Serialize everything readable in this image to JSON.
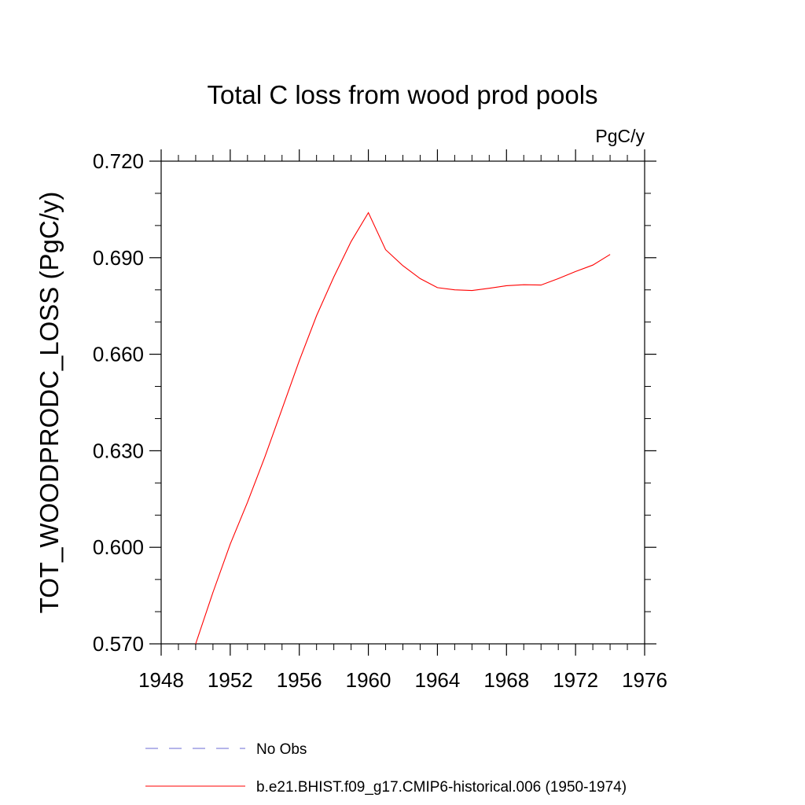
{
  "chart_data": {
    "type": "line",
    "title": "Total C loss from wood prod pools",
    "units_label": "PgC/y",
    "ylabel": "TOT_WOODPRODC_LOSS  (PgC/y)",
    "xlabel": "",
    "xlim": [
      1948,
      1976
    ],
    "ylim": [
      0.57,
      0.72
    ],
    "x_major_ticks": [
      1948,
      1952,
      1956,
      1960,
      1964,
      1968,
      1972,
      1976
    ],
    "x_major_tick_labels": [
      "1948",
      "1952",
      "1956",
      "1960",
      "1964",
      "1968",
      "1972",
      "1976"
    ],
    "y_major_ticks": [
      0.57,
      0.6,
      0.63,
      0.66,
      0.69,
      0.72
    ],
    "y_major_tick_labels": [
      "0.570",
      "0.600",
      "0.630",
      "0.660",
      "0.690",
      "0.720"
    ],
    "x_minor_step": 1,
    "y_minor_step": 0.01,
    "grid": false,
    "legend_position": "bottom",
    "series": [
      {
        "name": "b.e21.BHIST.f09_g17.CMIP6-historical.006 (1950-1974)",
        "color": "#ff0000",
        "style": "solid",
        "x": [
          1950,
          1951,
          1952,
          1953,
          1954,
          1955,
          1956,
          1957,
          1958,
          1959,
          1960,
          1961,
          1962,
          1963,
          1964,
          1965,
          1966,
          1967,
          1968,
          1969,
          1970,
          1971,
          1972,
          1973,
          1974
        ],
        "y": [
          0.57,
          0.586,
          0.601,
          0.614,
          0.628,
          0.643,
          0.658,
          0.672,
          0.684,
          0.695,
          0.704,
          0.6925,
          0.6875,
          0.6835,
          0.6807,
          0.68,
          0.6798,
          0.6805,
          0.6813,
          0.6816,
          0.6815,
          0.6835,
          0.6857,
          0.6877,
          0.691
        ]
      }
    ],
    "legend_entries": [
      {
        "label": "No Obs",
        "color": "#6b6bd6",
        "style": "dashed"
      },
      {
        "label": "b.e21.BHIST.f09_g17.CMIP6-historical.006 (1950-1974)",
        "color": "#ff0000",
        "style": "solid"
      }
    ]
  }
}
